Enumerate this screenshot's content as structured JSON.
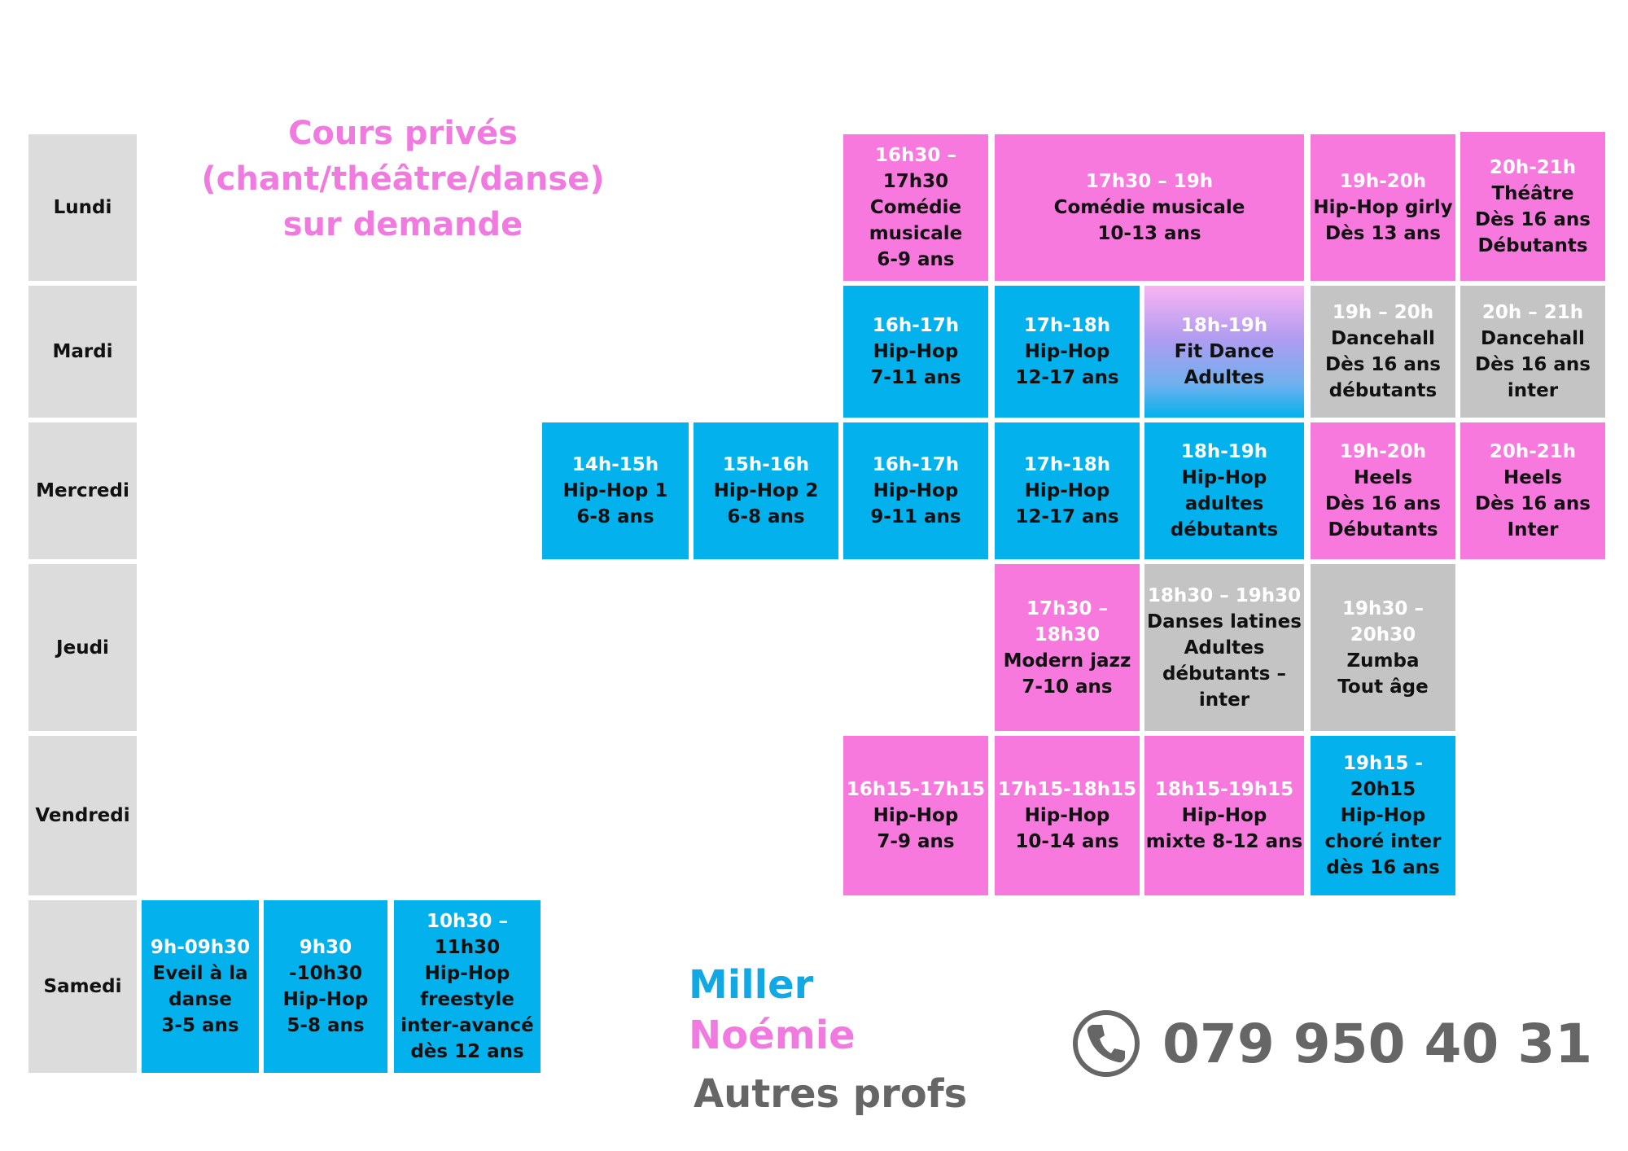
{
  "private_lessons": [
    "Cours privés",
    "(chant/théâtre/danse)",
    "sur demande"
  ],
  "days": [
    "Lundi",
    "Mardi",
    "Mercredi",
    "Jeudi",
    "Vendredi",
    "Samedi"
  ],
  "cells": [
    {
      "color": "pink",
      "time": "16h30 –",
      "lines": [
        "17h30",
        "Comédie",
        "musicale",
        "6-9 ans"
      ]
    },
    {
      "color": "pink",
      "time": "17h30 – 19h",
      "lines": [
        "Comédie musicale",
        "10-13 ans"
      ]
    },
    {
      "color": "pink",
      "time": "19h-20h",
      "lines": [
        "Hip-Hop girly",
        "Dès 13 ans"
      ]
    },
    {
      "color": "pink",
      "time": "20h-21h",
      "lines": [
        "Théâtre",
        "Dès 16 ans",
        "Débutants"
      ]
    },
    {
      "color": "blue",
      "time": "16h-17h",
      "lines": [
        "Hip-Hop",
        "7-11 ans"
      ]
    },
    {
      "color": "blue",
      "time": "17h-18h",
      "lines": [
        "Hip-Hop",
        "12-17 ans"
      ]
    },
    {
      "color": "gradient",
      "time": "18h-19h",
      "lines": [
        "Fit Dance",
        "Adultes"
      ]
    },
    {
      "color": "grey",
      "time": "19h – 20h",
      "lines": [
        "Dancehall",
        "Dès 16 ans",
        "débutants"
      ]
    },
    {
      "color": "grey",
      "time": "20h – 21h",
      "lines": [
        "Dancehall",
        "Dès 16 ans",
        "inter"
      ]
    },
    {
      "color": "blue",
      "time": "14h-15h",
      "lines": [
        "Hip-Hop 1",
        "6-8 ans"
      ]
    },
    {
      "color": "blue",
      "time": "15h-16h",
      "lines": [
        "Hip-Hop 2",
        "6-8 ans"
      ]
    },
    {
      "color": "blue",
      "time": "16h-17h",
      "lines": [
        "Hip-Hop",
        "9-11 ans"
      ]
    },
    {
      "color": "blue",
      "time": "17h-18h",
      "lines": [
        "Hip-Hop",
        "12-17 ans"
      ]
    },
    {
      "color": "blue",
      "time": "18h-19h",
      "lines": [
        "Hip-Hop",
        "adultes",
        "débutants"
      ]
    },
    {
      "color": "pink",
      "time": "19h-20h",
      "lines": [
        "Heels",
        "Dès 16 ans",
        "Débutants"
      ]
    },
    {
      "color": "pink",
      "time": "20h-21h",
      "lines": [
        "Heels",
        "Dès 16 ans",
        "Inter"
      ]
    },
    {
      "color": "pink",
      "time": "17h30 – 18h30",
      "lines": [
        "Modern jazz",
        "7-10 ans"
      ]
    },
    {
      "color": "grey",
      "time": "18h30 – 19h30",
      "lines": [
        "Danses latines",
        "Adultes",
        "débutants –",
        "inter"
      ]
    },
    {
      "color": "grey",
      "time": "19h30 – 20h30",
      "lines": [
        "Zumba",
        "Tout âge"
      ]
    },
    {
      "color": "pink",
      "time": "16h15-17h15",
      "lines": [
        "Hip-Hop",
        "7-9 ans"
      ]
    },
    {
      "color": "pink",
      "time": "17h15-18h15",
      "lines": [
        "Hip-Hop",
        "10-14 ans"
      ]
    },
    {
      "color": "pink",
      "time": "18h15-19h15",
      "lines": [
        "Hip-Hop",
        "mixte 8-12 ans"
      ]
    },
    {
      "color": "blue",
      "time": "19h15 -",
      "lines": [
        "20h15",
        "Hip-Hop",
        "choré inter",
        "dès 16 ans"
      ]
    },
    {
      "color": "blue",
      "time": "9h-09h30",
      "lines": [
        "Eveil à la",
        "danse",
        "3-5 ans"
      ]
    },
    {
      "color": "blue",
      "time": "9h30",
      "lines": [
        "-10h30",
        "Hip-Hop",
        "5-8 ans"
      ]
    },
    {
      "color": "blue",
      "time": "10h30 –",
      "lines": [
        "11h30",
        "Hip-Hop",
        "freestyle",
        "inter-avancé",
        "dès 12 ans"
      ]
    }
  ],
  "legend": [
    {
      "label": "Miller",
      "color": "#12a8e3"
    },
    {
      "label": "Noémie",
      "color": "#f17ae1"
    },
    {
      "label": "Autres profs",
      "color": "#666666"
    }
  ],
  "phone": {
    "number": "079 950 40 31",
    "icon": "phone-icon"
  }
}
